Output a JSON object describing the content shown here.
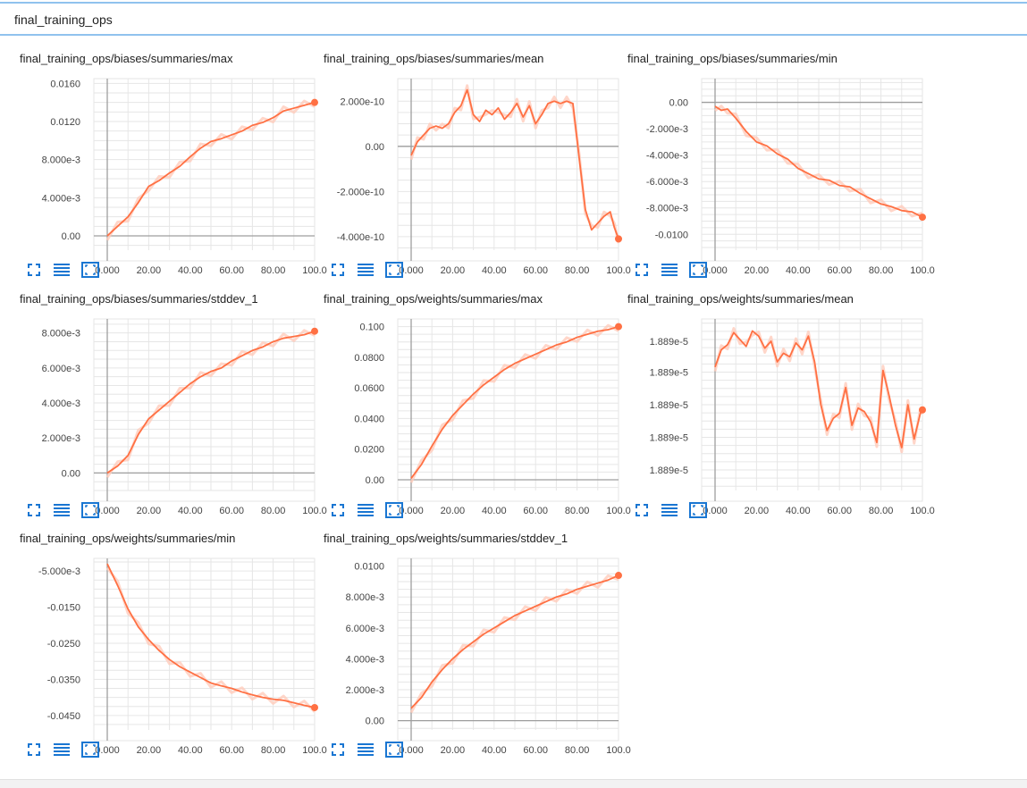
{
  "group": {
    "title": "final_training_ops"
  },
  "icons": {
    "expand": "fullscreen-icon",
    "data": "data-list-icon",
    "fit": "fit-domain-icon"
  },
  "colors": {
    "line": "#ff7043",
    "smooth_raw": "#ffccbc",
    "grid": "#e6e6e6",
    "axis": "#9e9e9e",
    "icon": "#1976d2"
  },
  "chart_data": [
    {
      "type": "line",
      "title": "final_training_ops/biases/summaries/max",
      "xlim": [
        0,
        100
      ],
      "ylim": [
        -0.0015,
        0.0165
      ],
      "xticks": [
        0,
        20,
        40,
        60,
        80,
        100
      ],
      "xtick_labels": [
        "0.000",
        "20.00",
        "40.00",
        "60.00",
        "80.00",
        "100.0"
      ],
      "yticks": [
        0,
        0.004,
        0.008,
        0.012,
        0.016
      ],
      "ytick_labels": [
        "0.00",
        "4.000e-3",
        "8.000e-3",
        "0.0120",
        "0.0160"
      ],
      "series": [
        {
          "x": [
            0,
            5,
            10,
            15,
            20,
            25,
            30,
            35,
            40,
            45,
            50,
            55,
            60,
            65,
            70,
            75,
            80,
            85,
            90,
            95,
            100
          ],
          "y": [
            0,
            0.001,
            0.002,
            0.0035,
            0.0052,
            0.0058,
            0.0066,
            0.0073,
            0.0083,
            0.0092,
            0.0099,
            0.0102,
            0.0106,
            0.011,
            0.0116,
            0.0119,
            0.0124,
            0.0131,
            0.0134,
            0.0137,
            0.014
          ]
        }
      ]
    },
    {
      "type": "line",
      "title": "final_training_ops/biases/summaries/mean",
      "xlim": [
        0,
        100
      ],
      "ylim": [
        -4.6e-10,
        3e-10
      ],
      "xticks": [
        0,
        20,
        40,
        60,
        80,
        100
      ],
      "xtick_labels": [
        "0.000",
        "20.00",
        "40.00",
        "60.00",
        "80.00",
        "100.0"
      ],
      "yticks": [
        -4e-10,
        -2e-10,
        0,
        2e-10
      ],
      "ytick_labels": [
        "-4.000e-10",
        "-2.000e-10",
        "0.00",
        "2.000e-10"
      ],
      "series": [
        {
          "x": [
            0,
            3,
            6,
            9,
            12,
            15,
            18,
            21,
            24,
            27,
            30,
            33,
            36,
            39,
            42,
            45,
            48,
            51,
            54,
            57,
            60,
            63,
            66,
            69,
            72,
            75,
            78,
            81,
            84,
            87,
            90,
            93,
            96,
            98,
            100
          ],
          "y": [
            -4e-11,
            2e-11,
            5e-11,
            8e-11,
            9e-11,
            8e-11,
            1e-10,
            1.5e-10,
            1.8e-10,
            2.5e-10,
            1.4e-10,
            1.1e-10,
            1.6e-10,
            1.4e-10,
            1.7e-10,
            1.2e-10,
            1.5e-10,
            1.9e-10,
            1.3e-10,
            1.8e-10,
            1e-10,
            1.4e-10,
            1.9e-10,
            2e-10,
            1.9e-10,
            2e-10,
            1.9e-10,
            -5e-11,
            -2.8e-10,
            -3.7e-10,
            -3.4e-10,
            -3.1e-10,
            -2.9e-10,
            -3.6e-10,
            -4.1e-10
          ]
        }
      ]
    },
    {
      "type": "line",
      "title": "final_training_ops/biases/summaries/min",
      "xlim": [
        0,
        100
      ],
      "ylim": [
        -0.0112,
        0.0018
      ],
      "xticks": [
        0,
        20,
        40,
        60,
        80,
        100
      ],
      "xtick_labels": [
        "0.000",
        "20.00",
        "40.00",
        "60.00",
        "80.00",
        "100.0"
      ],
      "yticks": [
        -0.01,
        -0.008,
        -0.006,
        -0.004,
        -0.002,
        0
      ],
      "ytick_labels": [
        "-0.0100",
        "-8.000e-3",
        "-6.000e-3",
        "-4.000e-3",
        "-2.000e-3",
        "0.00"
      ],
      "series": [
        {
          "x": [
            0,
            3,
            6,
            10,
            15,
            20,
            25,
            30,
            35,
            40,
            45,
            50,
            55,
            60,
            65,
            70,
            75,
            80,
            85,
            90,
            95,
            100
          ],
          "y": [
            -0.0003,
            -0.0006,
            -0.0005,
            -0.0012,
            -0.0022,
            -0.003,
            -0.0033,
            -0.0039,
            -0.0043,
            -0.005,
            -0.0054,
            -0.0058,
            -0.0059,
            -0.0063,
            -0.0064,
            -0.0069,
            -0.0073,
            -0.0077,
            -0.0079,
            -0.0082,
            -0.0083,
            -0.0087
          ]
        }
      ]
    },
    {
      "type": "line",
      "title": "final_training_ops/biases/summaries/stddev_1",
      "xlim": [
        0,
        100
      ],
      "ylim": [
        -0.001,
        0.0088
      ],
      "xticks": [
        0,
        20,
        40,
        60,
        80,
        100
      ],
      "xtick_labels": [
        "0.000",
        "20.00",
        "40.00",
        "60.00",
        "80.00",
        "100.0"
      ],
      "yticks": [
        0,
        0.002,
        0.004,
        0.006,
        0.008
      ],
      "ytick_labels": [
        "0.00",
        "2.000e-3",
        "4.000e-3",
        "6.000e-3",
        "8.000e-3"
      ],
      "series": [
        {
          "x": [
            0,
            5,
            10,
            15,
            20,
            25,
            30,
            35,
            40,
            45,
            50,
            55,
            60,
            65,
            70,
            75,
            80,
            85,
            90,
            95,
            100
          ],
          "y": [
            0,
            0.0004,
            0.001,
            0.0022,
            0.0031,
            0.0036,
            0.0041,
            0.0046,
            0.0051,
            0.0055,
            0.0058,
            0.006,
            0.0064,
            0.0067,
            0.007,
            0.0072,
            0.0075,
            0.0077,
            0.0078,
            0.0079,
            0.0081
          ]
        }
      ]
    },
    {
      "type": "line",
      "title": "final_training_ops/weights/summaries/max",
      "xlim": [
        0,
        100
      ],
      "ylim": [
        -0.007,
        0.105
      ],
      "xticks": [
        0,
        20,
        40,
        60,
        80,
        100
      ],
      "xtick_labels": [
        "0.000",
        "20.00",
        "40.00",
        "60.00",
        "80.00",
        "100.0"
      ],
      "yticks": [
        0,
        0.02,
        0.04,
        0.06,
        0.08,
        0.1
      ],
      "ytick_labels": [
        "0.00",
        "0.0200",
        "0.0400",
        "0.0600",
        "0.0800",
        "0.100"
      ],
      "series": [
        {
          "x": [
            0,
            5,
            10,
            15,
            20,
            25,
            30,
            35,
            40,
            45,
            50,
            55,
            60,
            65,
            70,
            75,
            80,
            85,
            90,
            95,
            100
          ],
          "y": [
            0.001,
            0.01,
            0.022,
            0.033,
            0.042,
            0.049,
            0.056,
            0.062,
            0.067,
            0.072,
            0.076,
            0.079,
            0.082,
            0.085,
            0.088,
            0.09,
            0.093,
            0.095,
            0.097,
            0.098,
            0.1
          ]
        }
      ]
    },
    {
      "type": "line",
      "title": "final_training_ops/weights/summaries/mean",
      "xlim": [
        0,
        100
      ],
      "ylim": [
        0,
        1
      ],
      "xticks": [
        0,
        20,
        40,
        60,
        80,
        100
      ],
      "xtick_labels": [
        "0.000",
        "20.00",
        "40.00",
        "60.00",
        "80.00",
        "100.0"
      ],
      "yticks": [
        0.12,
        0.31,
        0.5,
        0.69,
        0.87
      ],
      "ytick_labels": [
        "1.889e-5",
        "1.889e-5",
        "1.889e-5",
        "1.889e-5",
        "1.889e-5"
      ],
      "series": [
        {
          "x": [
            0,
            3,
            6,
            9,
            12,
            15,
            18,
            21,
            24,
            27,
            30,
            33,
            36,
            39,
            42,
            45,
            48,
            51,
            54,
            57,
            60,
            63,
            66,
            69,
            72,
            75,
            78,
            81,
            84,
            87,
            90,
            93,
            96,
            99,
            100
          ],
          "y": [
            0.72,
            0.82,
            0.85,
            0.92,
            0.88,
            0.84,
            0.93,
            0.9,
            0.83,
            0.87,
            0.75,
            0.8,
            0.78,
            0.86,
            0.82,
            0.9,
            0.75,
            0.5,
            0.35,
            0.42,
            0.45,
            0.6,
            0.38,
            0.48,
            0.46,
            0.4,
            0.28,
            0.7,
            0.55,
            0.38,
            0.25,
            0.5,
            0.3,
            0.45,
            0.47
          ]
        }
      ]
    },
    {
      "type": "line",
      "title": "final_training_ops/weights/summaries/min",
      "xlim": [
        0,
        100
      ],
      "ylim": [
        -0.049,
        -0.0015
      ],
      "xticks": [
        0,
        20,
        40,
        60,
        80,
        100
      ],
      "xtick_labels": [
        "0.000",
        "20.00",
        "40.00",
        "60.00",
        "80.00",
        "100.0"
      ],
      "yticks": [
        -0.045,
        -0.035,
        -0.025,
        -0.015,
        -0.005
      ],
      "ytick_labels": [
        "-0.0450",
        "-0.0350",
        "-0.0250",
        "-0.0150",
        "-5.000e-3"
      ],
      "series": [
        {
          "x": [
            0,
            5,
            10,
            15,
            20,
            25,
            30,
            35,
            40,
            45,
            50,
            55,
            60,
            65,
            70,
            75,
            80,
            85,
            90,
            95,
            100
          ],
          "y": [
            -0.003,
            -0.009,
            -0.0155,
            -0.0205,
            -0.024,
            -0.027,
            -0.0295,
            -0.0315,
            -0.033,
            -0.0345,
            -0.036,
            -0.0368,
            -0.0375,
            -0.0385,
            -0.0393,
            -0.04,
            -0.0405,
            -0.0408,
            -0.0415,
            -0.0422,
            -0.0428
          ]
        }
      ]
    },
    {
      "type": "line",
      "title": "final_training_ops/weights/summaries/stddev_1",
      "xlim": [
        0,
        100
      ],
      "ylim": [
        -0.0006,
        0.0105
      ],
      "xticks": [
        0,
        20,
        40,
        60,
        80,
        100
      ],
      "xtick_labels": [
        "0.000",
        "20.00",
        "40.00",
        "60.00",
        "80.00",
        "100.0"
      ],
      "yticks": [
        0,
        0.002,
        0.004,
        0.006,
        0.008,
        0.01
      ],
      "ytick_labels": [
        "0.00",
        "2.000e-3",
        "4.000e-3",
        "6.000e-3",
        "8.000e-3",
        "0.0100"
      ],
      "series": [
        {
          "x": [
            0,
            5,
            10,
            15,
            20,
            25,
            30,
            35,
            40,
            45,
            50,
            55,
            60,
            65,
            70,
            75,
            80,
            85,
            90,
            95,
            100
          ],
          "y": [
            0.0008,
            0.0015,
            0.0025,
            0.0033,
            0.004,
            0.0046,
            0.0051,
            0.0056,
            0.006,
            0.0064,
            0.0068,
            0.0071,
            0.0074,
            0.0077,
            0.008,
            0.0082,
            0.0085,
            0.0087,
            0.0089,
            0.0091,
            0.0094
          ]
        }
      ]
    }
  ]
}
